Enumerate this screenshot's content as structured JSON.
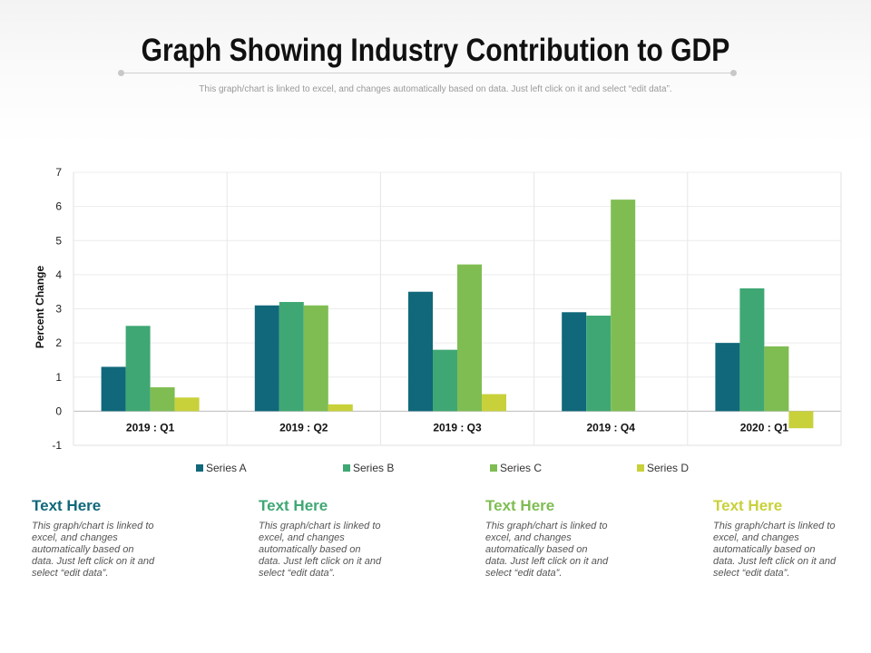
{
  "header": {
    "title": "Graph Showing Industry Contribution to GDP",
    "subtitle": "This graph/chart is linked to excel, and changes automatically based on data. Just left click on it and select “edit data”."
  },
  "chart_data": {
    "type": "bar",
    "ylabel": "Percent Change",
    "xlabel": "",
    "ylim": [
      -1,
      7
    ],
    "yticks": [
      -1,
      0,
      1,
      2,
      3,
      4,
      5,
      6,
      7
    ],
    "grid": true,
    "legend_position": "bottom",
    "categories": [
      "2019 : Q1",
      "2019 : Q2",
      "2019 : Q3",
      "2019 : Q4",
      "2020 : Q1"
    ],
    "series": [
      {
        "name": "Series A",
        "color": "#10687a",
        "values": [
          1.3,
          3.1,
          3.5,
          2.9,
          2.0
        ]
      },
      {
        "name": "Series B",
        "color": "#3fa774",
        "values": [
          2.5,
          3.2,
          1.8,
          2.8,
          3.6
        ]
      },
      {
        "name": "Series C",
        "color": "#7fbd52",
        "values": [
          0.7,
          3.1,
          4.3,
          6.2,
          1.9
        ]
      },
      {
        "name": "Series D",
        "color": "#c8d13a",
        "values": [
          0.4,
          0.2,
          0.5,
          0.0,
          -0.5
        ]
      }
    ]
  },
  "captions": [
    {
      "heading": "Text Here",
      "color": "#10687a",
      "body": "This graph/chart is linked to excel, and changes automatically based on data. Just left click on it and select “edit data”."
    },
    {
      "heading": "Text Here",
      "color": "#3fa774",
      "body": "This graph/chart is linked to excel, and changes automatically based on data. Just left click on it and select “edit data”."
    },
    {
      "heading": "Text Here",
      "color": "#7fbd52",
      "body": "This graph/chart is linked to excel, and changes automatically based on data. Just left click on it and select “edit data”."
    },
    {
      "heading": "Text Here",
      "color": "#c8d13a",
      "body": "This graph/chart is linked to excel, and changes automatically based on data. Just left click on it and select “edit data”."
    }
  ]
}
